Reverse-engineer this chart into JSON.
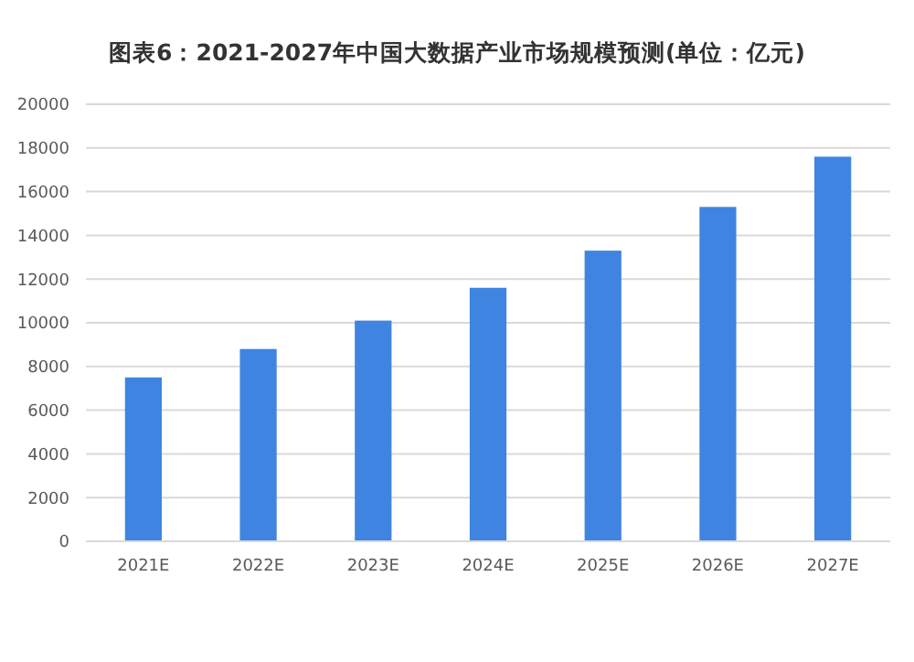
{
  "chart_data": {
    "type": "bar",
    "title": "图表6：2021-2027年中国大数据产业市场规模预测(单位：亿元)",
    "categories": [
      "2021E",
      "2022E",
      "2023E",
      "2024E",
      "2025E",
      "2026E",
      "2027E"
    ],
    "values": [
      7500,
      8800,
      10100,
      11600,
      13300,
      15300,
      17600
    ],
    "color": "#3f84e0",
    "ylim": [
      0,
      20000
    ],
    "yticks": [
      0,
      2000,
      4000,
      6000,
      8000,
      10000,
      12000,
      14000,
      16000,
      18000,
      20000
    ],
    "grid": "y"
  }
}
